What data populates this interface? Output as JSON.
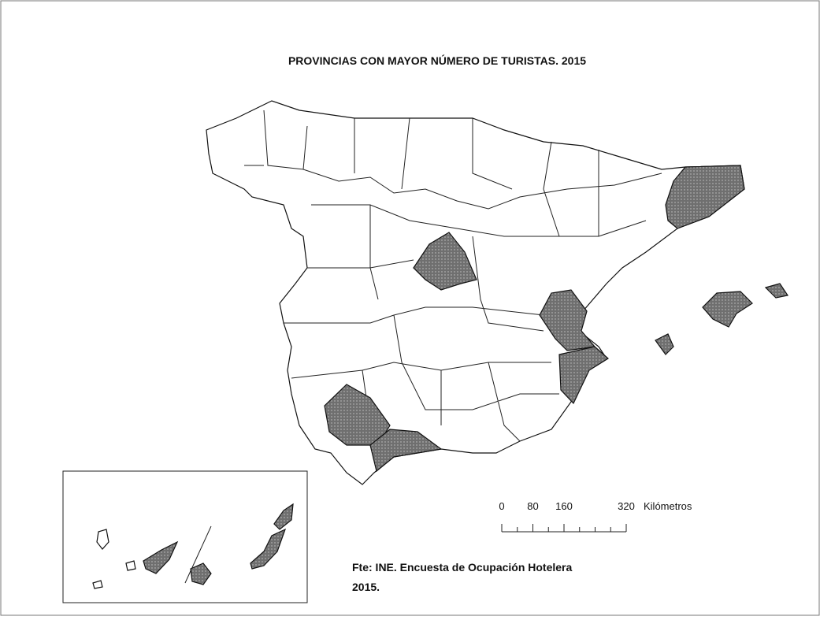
{
  "title": "PROVINCIAS CON MAYOR NÚMERO DE TURISTAS. 2015",
  "scale": {
    "ticks": [
      0,
      80,
      160,
      320
    ],
    "unit": "Kilómetros"
  },
  "source": {
    "lines": [
      "Fte: INE. Encuesta de Ocupación Hotelera",
      "2015."
    ]
  }
}
